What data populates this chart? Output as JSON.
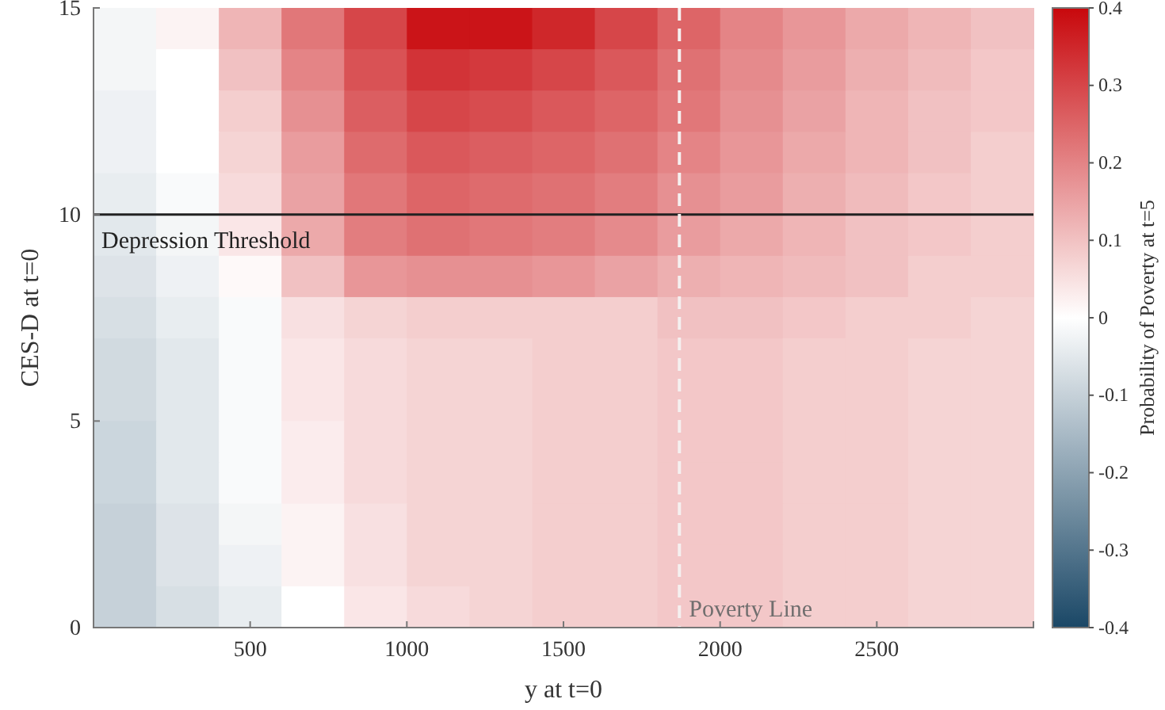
{
  "chart_data": {
    "type": "heatmap",
    "xlabel": "y at t=0",
    "ylabel": "CES-D at t=0",
    "clabel": "Probability of Poverty at t=5",
    "xlim": [
      0,
      3000
    ],
    "ylim": [
      0,
      15
    ],
    "xticks": [
      500,
      1000,
      1500,
      2000,
      2500
    ],
    "yticks": [
      0,
      5,
      10,
      15
    ],
    "clim": [
      -0.4,
      0.4
    ],
    "cticks": [
      -0.4,
      -0.3,
      -0.2,
      -0.1,
      0,
      0.1,
      0.2,
      0.3,
      0.4
    ],
    "cells": [
      [
        -0.02,
        0.02,
        0.12,
        0.22,
        0.3,
        0.38,
        0.38,
        0.35,
        0.3,
        0.25,
        0.2,
        0.17,
        0.14,
        0.12,
        0.1
      ],
      [
        -0.02,
        0,
        0.1,
        0.2,
        0.28,
        0.33,
        0.32,
        0.3,
        0.27,
        0.23,
        0.19,
        0.16,
        0.13,
        0.11,
        0.09
      ],
      [
        -0.03,
        0,
        0.08,
        0.18,
        0.26,
        0.3,
        0.29,
        0.27,
        0.25,
        0.22,
        0.18,
        0.15,
        0.12,
        0.1,
        0.09
      ],
      [
        -0.03,
        0,
        0.07,
        0.16,
        0.24,
        0.27,
        0.26,
        0.25,
        0.23,
        0.2,
        0.17,
        0.14,
        0.12,
        0.1,
        0.08
      ],
      [
        -0.04,
        -0.01,
        0.06,
        0.15,
        0.22,
        0.25,
        0.24,
        0.23,
        0.21,
        0.18,
        0.16,
        0.13,
        0.11,
        0.09,
        0.08
      ],
      [
        -0.05,
        -0.02,
        0.04,
        0.14,
        0.21,
        0.23,
        0.22,
        0.21,
        0.19,
        0.16,
        0.14,
        0.12,
        0.1,
        0.09,
        0.08
      ],
      [
        -0.06,
        -0.03,
        0.01,
        0.1,
        0.17,
        0.18,
        0.18,
        0.17,
        0.15,
        0.13,
        0.12,
        0.11,
        0.1,
        0.08,
        0.08
      ],
      [
        -0.07,
        -0.04,
        -0.01,
        0.05,
        0.07,
        0.08,
        0.08,
        0.08,
        0.08,
        0.1,
        0.1,
        0.09,
        0.08,
        0.08,
        0.07
      ],
      [
        -0.08,
        -0.05,
        -0.01,
        0.04,
        0.06,
        0.07,
        0.07,
        0.08,
        0.08,
        0.09,
        0.09,
        0.08,
        0.08,
        0.07,
        0.07
      ],
      [
        -0.08,
        -0.05,
        -0.01,
        0.04,
        0.06,
        0.07,
        0.07,
        0.08,
        0.08,
        0.09,
        0.09,
        0.08,
        0.08,
        0.07,
        0.07
      ],
      [
        -0.09,
        -0.05,
        -0.01,
        0.03,
        0.06,
        0.07,
        0.07,
        0.08,
        0.08,
        0.09,
        0.09,
        0.08,
        0.08,
        0.07,
        0.07
      ],
      [
        -0.09,
        -0.05,
        -0.01,
        0.03,
        0.06,
        0.07,
        0.07,
        0.08,
        0.08,
        0.09,
        0.09,
        0.08,
        0.08,
        0.07,
        0.07
      ],
      [
        -0.1,
        -0.06,
        -0.02,
        0.02,
        0.05,
        0.07,
        0.07,
        0.08,
        0.08,
        0.09,
        0.09,
        0.08,
        0.08,
        0.07,
        0.07
      ],
      [
        -0.1,
        -0.06,
        -0.03,
        0.02,
        0.05,
        0.07,
        0.07,
        0.08,
        0.08,
        0.09,
        0.09,
        0.08,
        0.08,
        0.07,
        0.07
      ],
      [
        -0.1,
        -0.07,
        -0.04,
        0,
        0.04,
        0.06,
        0.07,
        0.08,
        0.08,
        0.09,
        0.09,
        0.08,
        0.08,
        0.07,
        0.07
      ]
    ],
    "ref_lines": [
      {
        "axis": "y",
        "value": 10,
        "label": "Depression Threshold",
        "color": "#222222",
        "line_style": "solid"
      },
      {
        "axis": "x",
        "value": 1870,
        "label": "Poverty Line",
        "color": "#f5f0f0",
        "line_style": "dashed"
      }
    ]
  }
}
